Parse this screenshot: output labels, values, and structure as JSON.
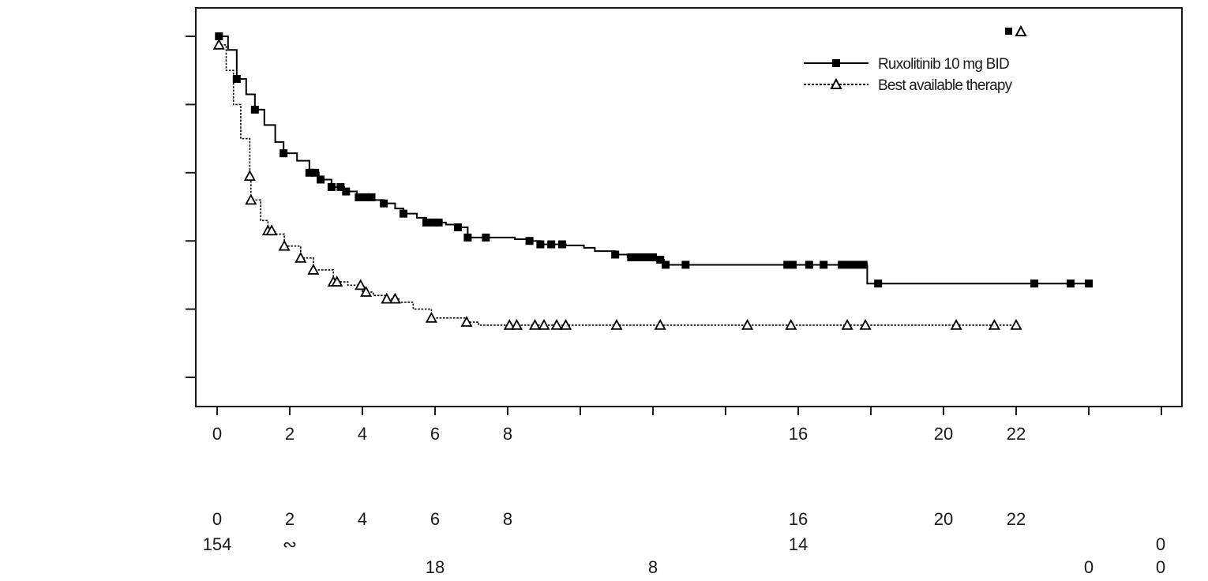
{
  "chart_data": {
    "type": "line",
    "subtype": "kaplan-meier",
    "title": "",
    "xlabel": "",
    "ylabel": "",
    "xlim": [
      0,
      26
    ],
    "ylim": [
      0,
      1.0
    ],
    "x_ticks": [
      0,
      2,
      4,
      6,
      8,
      10,
      12,
      14,
      16,
      18,
      20,
      22,
      24,
      26
    ],
    "x_tick_labels": [
      {
        "value": 0,
        "label": "0"
      },
      {
        "value": 2,
        "label": "2"
      },
      {
        "value": 4,
        "label": "4"
      },
      {
        "value": 6,
        "label": "6"
      },
      {
        "value": 8,
        "label": "8"
      },
      {
        "value": 16,
        "label": "16"
      },
      {
        "value": 20,
        "label": "20"
      },
      {
        "value": 22,
        "label": "22"
      }
    ],
    "y_ticks": [
      0.0,
      0.2,
      0.4,
      0.6,
      0.8,
      1.0
    ],
    "y_tick_labels_shown": false,
    "grid": false,
    "legend": {
      "position": "upper right",
      "marker_key": "■△",
      "entries": [
        {
          "label": "Ruxolitinib 10 mg BID",
          "line": "solid",
          "marker": "filled-square"
        },
        {
          "label": "Best available therapy",
          "line": "dotted",
          "marker": "open-triangle"
        }
      ]
    },
    "series": [
      {
        "name": "Ruxolitinib 10 mg BID",
        "line_style": "solid",
        "marker": "filled-square",
        "color": "#000000",
        "steps": [
          [
            0,
            1.0
          ],
          [
            0.3,
            0.96
          ],
          [
            0.54,
            0.875
          ],
          [
            0.8,
            0.83
          ],
          [
            1.04,
            0.785
          ],
          [
            1.3,
            0.74
          ],
          [
            1.6,
            0.69
          ],
          [
            1.83,
            0.657
          ],
          [
            2.2,
            0.635
          ],
          [
            2.54,
            0.6
          ],
          [
            2.8,
            0.58
          ],
          [
            3.15,
            0.558
          ],
          [
            3.5,
            0.545
          ],
          [
            3.85,
            0.528
          ],
          [
            4.3,
            0.52
          ],
          [
            4.59,
            0.51
          ],
          [
            4.9,
            0.495
          ],
          [
            5.13,
            0.48
          ],
          [
            5.5,
            0.468
          ],
          [
            5.76,
            0.454
          ],
          [
            6.3,
            0.448
          ],
          [
            6.63,
            0.44
          ],
          [
            6.9,
            0.41
          ],
          [
            8.2,
            0.405
          ],
          [
            8.6,
            0.4
          ],
          [
            8.9,
            0.39
          ],
          [
            9.6,
            0.387
          ],
          [
            10.1,
            0.38
          ],
          [
            10.4,
            0.37
          ],
          [
            10.96,
            0.36
          ],
          [
            11.3,
            0.352
          ],
          [
            12.2,
            0.345
          ],
          [
            12.3,
            0.33
          ],
          [
            17.9,
            0.33
          ],
          [
            17.9,
            0.275
          ],
          [
            24.0,
            0.275
          ]
        ],
        "censor_times": [
          0.05,
          0.54,
          1.04,
          1.83,
          2.54,
          2.7,
          2.85,
          3.15,
          3.4,
          3.55,
          3.9,
          4.1,
          4.25,
          4.59,
          5.13,
          5.76,
          5.95,
          6.1,
          6.63,
          6.9,
          7.4,
          8.6,
          8.9,
          9.2,
          9.5,
          10.96,
          11.4,
          11.6,
          11.8,
          12.0,
          12.2,
          12.35,
          12.9,
          15.7,
          15.85,
          16.3,
          16.7,
          17.2,
          17.4,
          17.6,
          17.8,
          18.2,
          22.5,
          23.5,
          24.0
        ]
      },
      {
        "name": "Best available therapy",
        "line_style": "dotted",
        "marker": "open-triangle",
        "color": "#000000",
        "steps": [
          [
            0,
            0.975
          ],
          [
            0.25,
            0.9
          ],
          [
            0.45,
            0.8
          ],
          [
            0.65,
            0.7
          ],
          [
            0.9,
            0.59
          ],
          [
            0.93,
            0.52
          ],
          [
            1.2,
            0.46
          ],
          [
            1.4,
            0.43
          ],
          [
            1.6,
            0.42
          ],
          [
            1.85,
            0.385
          ],
          [
            2.3,
            0.35
          ],
          [
            2.65,
            0.315
          ],
          [
            3.2,
            0.28
          ],
          [
            3.6,
            0.27
          ],
          [
            4.0,
            0.25
          ],
          [
            4.3,
            0.24
          ],
          [
            4.67,
            0.23
          ],
          [
            5.0,
            0.22
          ],
          [
            5.4,
            0.2
          ],
          [
            5.9,
            0.174
          ],
          [
            6.87,
            0.162
          ],
          [
            7.2,
            0.153
          ],
          [
            22.0,
            0.153
          ]
        ],
        "censor_times": [
          0.05,
          0.9,
          0.93,
          1.4,
          1.5,
          1.85,
          2.3,
          2.65,
          3.2,
          3.3,
          3.95,
          4.1,
          4.67,
          4.9,
          5.9,
          6.87,
          8.05,
          8.25,
          8.75,
          9.0,
          9.35,
          9.6,
          11.0,
          12.2,
          14.6,
          15.8,
          17.35,
          17.85,
          20.35,
          21.4,
          22.0
        ]
      }
    ],
    "risk_table": {
      "header_labels": [
        {
          "value": 0,
          "label": "0"
        },
        {
          "value": 2,
          "label": "2"
        },
        {
          "value": 4,
          "label": "4"
        },
        {
          "value": 6,
          "label": "6"
        },
        {
          "value": 8,
          "label": "8"
        },
        {
          "value": 16,
          "label": "16"
        },
        {
          "value": 20,
          "label": "20"
        },
        {
          "value": 22,
          "label": "22"
        }
      ],
      "rows": [
        {
          "name": "Ruxolitinib 10 mg BID",
          "entries": [
            {
              "value": 0,
              "label": "154"
            },
            {
              "value": 2,
              "label": "∾"
            },
            {
              "value": 16,
              "label": "14"
            },
            {
              "value": 26,
              "label": "0"
            }
          ]
        },
        {
          "name": "Best available therapy",
          "entries": [
            {
              "value": 6,
              "label": "18"
            },
            {
              "value": 12,
              "label": "8"
            },
            {
              "value": 24,
              "label": "0"
            },
            {
              "value": 26,
              "label": "0"
            }
          ]
        }
      ]
    }
  }
}
